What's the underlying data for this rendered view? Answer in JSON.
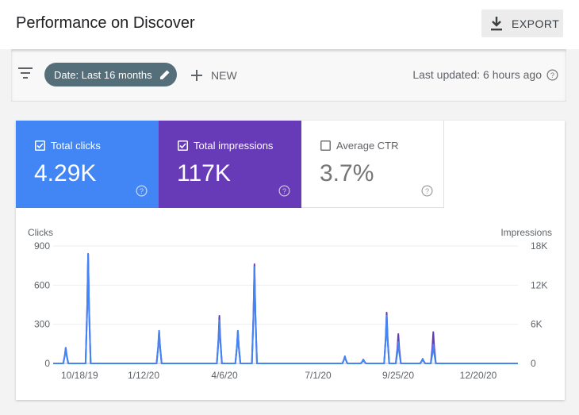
{
  "header": {
    "title": "Performance on Discover",
    "export_label": "EXPORT"
  },
  "filters": {
    "date_chip_label": "Date: Last 16 months",
    "new_label": "NEW",
    "last_updated": "Last updated: 6 hours ago"
  },
  "metrics": [
    {
      "label": "Total clicks",
      "value": "4.29K",
      "checked": true,
      "color": "#4285f4"
    },
    {
      "label": "Total impressions",
      "value": "117K",
      "checked": true,
      "color": "#673ab7"
    },
    {
      "label": "Average CTR",
      "value": "3.7%",
      "checked": false,
      "color": "#ffffff"
    }
  ],
  "chart_data": {
    "type": "line",
    "y_left_label": "Clicks",
    "y_right_label": "Impressions",
    "y_left_ticks": [
      "900",
      "600",
      "300",
      "0"
    ],
    "y_right_ticks": [
      "18K",
      "12K",
      "6K",
      "0"
    ],
    "y_left_range": [
      0,
      900
    ],
    "y_right_range": [
      0,
      18000
    ],
    "x_tick_labels": [
      "10/18/19",
      "1/12/20",
      "4/6/20",
      "7/1/20",
      "9/25/20",
      "12/20/20"
    ],
    "x_range": [
      "2019-10-18",
      "2021-02-07"
    ],
    "grid": true,
    "series": [
      {
        "name": "Clicks",
        "axis": "left",
        "color": "#4285f4",
        "spikes": [
          {
            "date": "2019-10-31",
            "value": 120
          },
          {
            "date": "2019-11-23",
            "value": 840
          },
          {
            "date": "2020-02-04",
            "value": 250
          },
          {
            "date": "2020-04-06",
            "value": 330
          },
          {
            "date": "2020-04-25",
            "value": 250
          },
          {
            "date": "2020-05-12",
            "value": 740
          },
          {
            "date": "2020-08-13",
            "value": 55
          },
          {
            "date": "2020-09-01",
            "value": 30
          },
          {
            "date": "2020-09-25",
            "value": 365
          },
          {
            "date": "2020-10-07",
            "value": 165
          },
          {
            "date": "2020-11-01",
            "value": 35
          },
          {
            "date": "2020-11-12",
            "value": 145
          }
        ]
      },
      {
        "name": "Impressions",
        "axis": "right",
        "color": "#673ab7",
        "spikes": [
          {
            "date": "2019-10-31",
            "value": 2400
          },
          {
            "date": "2019-11-23",
            "value": 16800
          },
          {
            "date": "2020-02-04",
            "value": 5000
          },
          {
            "date": "2020-04-06",
            "value": 7300
          },
          {
            "date": "2020-04-25",
            "value": 5000
          },
          {
            "date": "2020-05-12",
            "value": 15200
          },
          {
            "date": "2020-08-13",
            "value": 1100
          },
          {
            "date": "2020-09-01",
            "value": 600
          },
          {
            "date": "2020-09-25",
            "value": 7800
          },
          {
            "date": "2020-10-07",
            "value": 4500
          },
          {
            "date": "2020-11-01",
            "value": 700
          },
          {
            "date": "2020-11-12",
            "value": 4800
          }
        ]
      }
    ]
  }
}
